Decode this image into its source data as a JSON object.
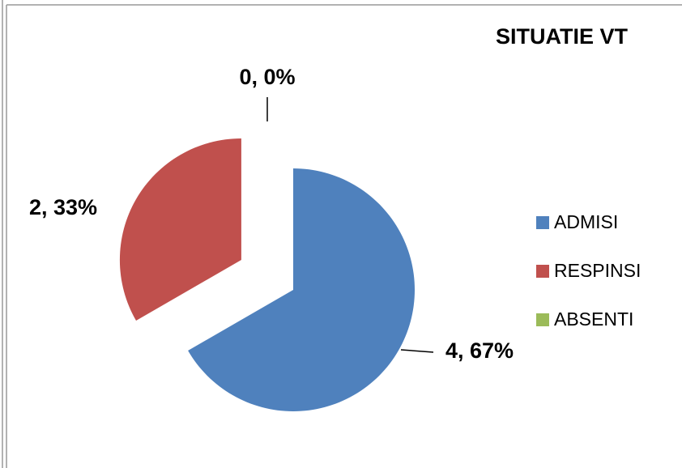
{
  "chart_data": {
    "type": "pie",
    "title": "SITUATIE VT",
    "categories": [
      "ADMISI",
      "RESPINSI",
      "ABSENTI"
    ],
    "values": [
      4,
      2,
      0
    ],
    "value_labels": [
      "4, 67%",
      "2, 33%",
      "0, 0%"
    ],
    "colors": [
      "#4f81bd",
      "#c0504d",
      "#9bbb59"
    ],
    "legend": "right"
  }
}
